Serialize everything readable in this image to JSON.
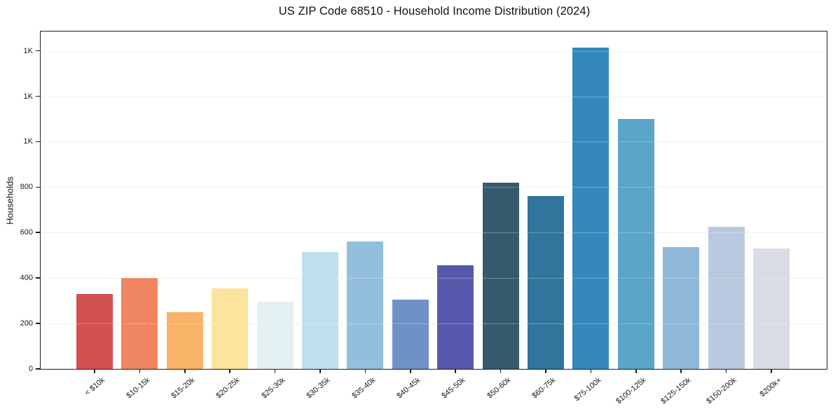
{
  "chart_data": {
    "type": "bar",
    "title": "US ZIP Code 68510 - Household Income Distribution (2024)",
    "xlabel": "",
    "ylabel": "Households",
    "categories": [
      "< $10k",
      "$10-15k",
      "$15-20k",
      "$20-25k",
      "$25-30k",
      "$30-35k",
      "$35-40k",
      "$40-45k",
      "$45-50k",
      "$50-60k",
      "$60-75k",
      "$75-100k",
      "$100-125k",
      "$125-150k",
      "$150-200k",
      "$200k+"
    ],
    "values": [
      330,
      400,
      250,
      355,
      295,
      515,
      560,
      305,
      455,
      820,
      760,
      1415,
      1100,
      535,
      625,
      530
    ],
    "bar_colors": [
      "#d25150",
      "#ef8561",
      "#f9b369",
      "#fce49e",
      "#e4f1f3",
      "#bfe0ed",
      "#93bfdd",
      "#6f92c6",
      "#5659ab",
      "#355a6e",
      "#31759d",
      "#3488bd",
      "#5ba4ca",
      "#90b8d8",
      "#b9c9df",
      "#d9dbe7"
    ],
    "y_ticks": [
      {
        "value": 0,
        "label": "0"
      },
      {
        "value": 200,
        "label": "200"
      },
      {
        "value": 400,
        "label": "400"
      },
      {
        "value": 600,
        "label": "600"
      },
      {
        "value": 800,
        "label": "800"
      },
      {
        "value": 1000,
        "label": "1K"
      },
      {
        "value": 1200,
        "label": "1K"
      },
      {
        "value": 1400,
        "label": "1K"
      }
    ],
    "ylim": [
      0,
      1485
    ],
    "grid": "horizontal",
    "legend": "none"
  }
}
